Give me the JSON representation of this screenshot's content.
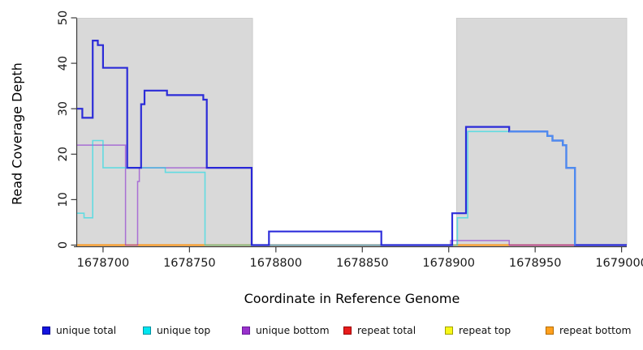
{
  "chart_data": {
    "type": "line",
    "line_style": "step-after",
    "title": "",
    "xlabel": "Coordinate in Reference Genome",
    "ylabel": "Read Coverage Depth",
    "xlim": [
      1678685,
      1679003
    ],
    "ylim": [
      0,
      50
    ],
    "x_ticks": [
      1678700,
      1678750,
      1678800,
      1678850,
      1678900,
      1678950,
      1679000
    ],
    "y_ticks": [
      0,
      10,
      20,
      30,
      40,
      50
    ],
    "grid": false,
    "legend_position": "bottom",
    "shaded_regions": [
      {
        "label": "repeat-region-left",
        "from": 1678685,
        "to": 1678786.5,
        "color": "#d9d9d9",
        "border": "#c6c6c6"
      },
      {
        "label": "repeat-region-right",
        "from": 1678904.5,
        "to": 1679003,
        "color": "#d9d9d9",
        "border": "#c6c6c6"
      }
    ],
    "series": [
      {
        "name": "repeat top",
        "color": "#f0f010",
        "opacity": 0.95,
        "width": 1.4,
        "points": [
          [
            1678685,
            0
          ],
          [
            1679003,
            0
          ]
        ]
      },
      {
        "name": "repeat total",
        "color": "#e12222",
        "opacity": 0.95,
        "width": 1.4,
        "points": [
          [
            1678685,
            0
          ],
          [
            1679003,
            0
          ]
        ]
      },
      {
        "name": "repeat bottom",
        "color": "#ff9913",
        "opacity": 1.0,
        "width": 1.8,
        "points": [
          [
            1678685,
            0
          ],
          [
            1678935,
            0
          ]
        ]
      },
      {
        "name": "unique bottom",
        "color": "#8a2fd0",
        "opacity": 0.62,
        "width": 1.5,
        "points": [
          [
            1678685,
            22
          ],
          [
            1678713,
            0
          ],
          [
            1678720,
            14
          ],
          [
            1678721,
            17
          ],
          [
            1678786,
            0
          ],
          [
            1678901,
            1
          ],
          [
            1678935,
            0
          ],
          [
            1679003,
            0
          ]
        ]
      },
      {
        "name": "unique top",
        "color": "#00dde8",
        "opacity": 0.55,
        "width": 1.6,
        "points": [
          [
            1678685,
            7
          ],
          [
            1678689,
            6
          ],
          [
            1678694,
            23
          ],
          [
            1678700,
            17
          ],
          [
            1678736,
            16
          ],
          [
            1678759,
            0
          ],
          [
            1678905,
            6
          ],
          [
            1678911,
            25
          ],
          [
            1678957,
            24
          ],
          [
            1678960,
            23
          ],
          [
            1678966,
            22
          ],
          [
            1678968,
            17
          ],
          [
            1678973,
            0
          ],
          [
            1679003,
            0
          ]
        ]
      },
      {
        "name": "unique total",
        "color": "#1d1dd8",
        "opacity": 0.92,
        "width": 2.2,
        "color_override": {
          "from": 1678935,
          "to": 1678973,
          "color": "#4e8cf0"
        },
        "points": [
          [
            1678685,
            30
          ],
          [
            1678688,
            28
          ],
          [
            1678694,
            45
          ],
          [
            1678697,
            44
          ],
          [
            1678700,
            39
          ],
          [
            1678714,
            17
          ],
          [
            1678722,
            31
          ],
          [
            1678724,
            34
          ],
          [
            1678737,
            33
          ],
          [
            1678758,
            32
          ],
          [
            1678760,
            17
          ],
          [
            1678786,
            0
          ],
          [
            1678796,
            3
          ],
          [
            1678861,
            0
          ],
          [
            1678902,
            7
          ],
          [
            1678910,
            26
          ],
          [
            1678935,
            25
          ],
          [
            1678957,
            24
          ],
          [
            1678960,
            23
          ],
          [
            1678966,
            22
          ],
          [
            1678968,
            17
          ],
          [
            1678973,
            0
          ],
          [
            1679003,
            0
          ]
        ]
      }
    ],
    "legend": {
      "items": [
        {
          "label": "unique total",
          "fill": "#1414e0",
          "border": "#000090"
        },
        {
          "label": "unique top",
          "fill": "#00e6f0",
          "border": "#0090a0"
        },
        {
          "label": "unique bottom",
          "fill": "#9932cc",
          "border": "#6a1b9a"
        },
        {
          "label": "repeat total",
          "fill": "#e81c1c",
          "border": "#990000"
        },
        {
          "label": "repeat top",
          "fill": "#f7f718",
          "border": "#a0a000"
        },
        {
          "label": "repeat bottom",
          "fill": "#ffa01e",
          "border": "#b36b00"
        }
      ]
    }
  },
  "axis_style": {
    "tick_label_color": "#1a1a1a",
    "axis_color": "#3c3c3c"
  }
}
